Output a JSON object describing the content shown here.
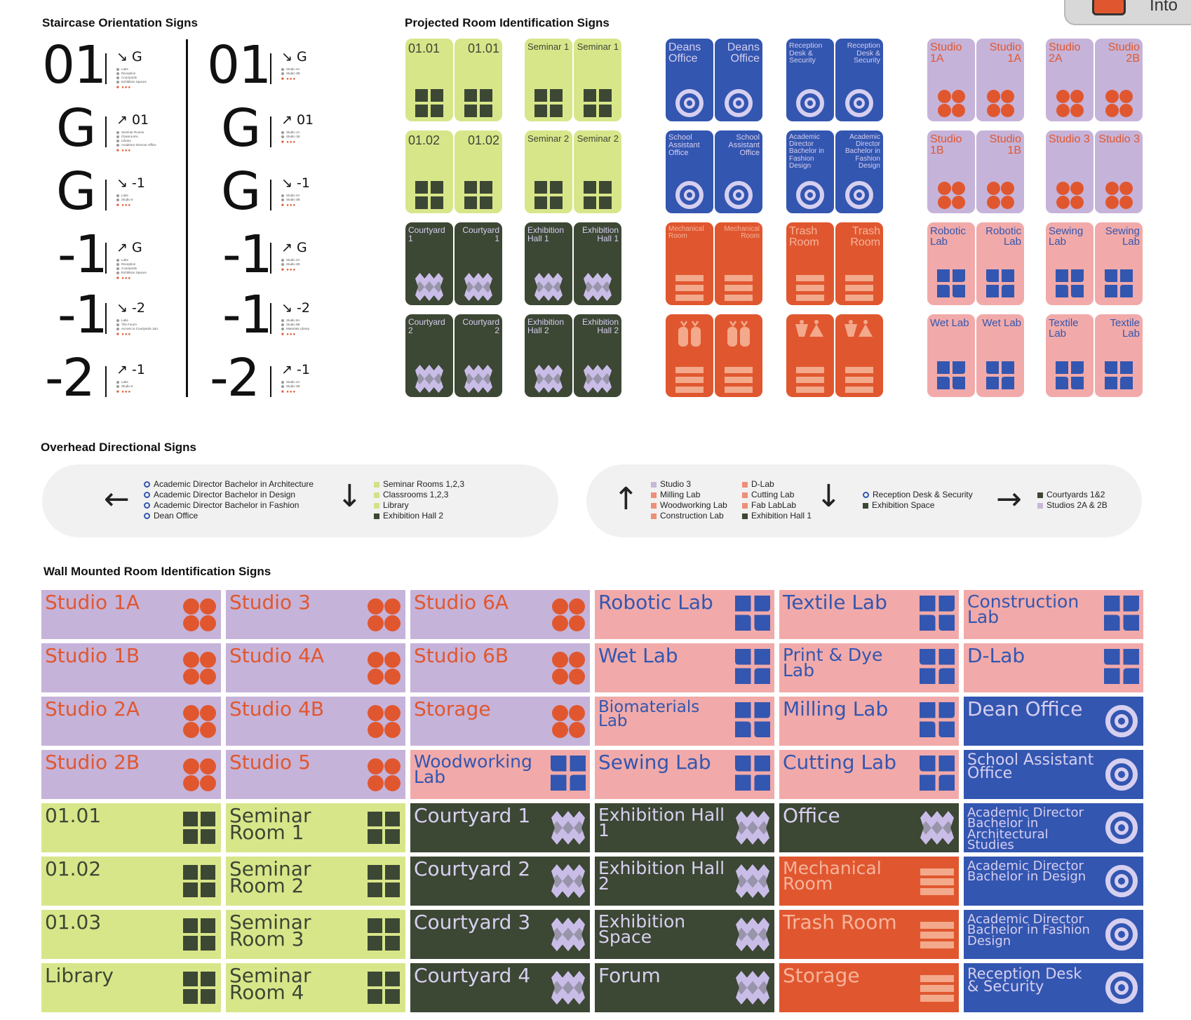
{
  "sections": {
    "staircase": "Staircase Orientation Signs",
    "projected": "Projected Room Identification Signs",
    "overhead": "Overhead Directional Signs",
    "wall": "Wall Mounted Room Identification Signs"
  },
  "top_badge": "Into",
  "staircase": {
    "left": [
      {
        "level": "01",
        "dir": "↘ G",
        "items": [
          "Labs",
          "Reception",
          "Courtyards",
          "Exhibition Spaces"
        ]
      },
      {
        "level": "G",
        "dir": "↗ 01",
        "items": [
          "Seminar Rooms",
          "Classrooms",
          "Library",
          "Academic Director Office"
        ]
      },
      {
        "level": "G",
        "dir": "↘ -1",
        "items": [
          "Labs",
          "Studio 5"
        ]
      },
      {
        "level": "-1",
        "dir": "↗ G",
        "items": [
          "Labs",
          "Reception",
          "Courtyards",
          "Exhibition Spaces"
        ]
      },
      {
        "level": "-1",
        "dir": "↘ -2",
        "items": [
          "Labs",
          "The Forum",
          "Access to Courtyards 1&4"
        ]
      },
      {
        "level": "-2",
        "dir": "↗ -1",
        "items": [
          "Labs",
          "Studio 6"
        ]
      }
    ],
    "right": [
      {
        "level": "01",
        "dir": "↘ G",
        "items": [
          "Studio 3A",
          "Studio 3B"
        ]
      },
      {
        "level": "G",
        "dir": "↗ 01",
        "items": [
          "Studio 1A",
          "Studio 1B"
        ]
      },
      {
        "level": "G",
        "dir": "↘ -1",
        "items": [
          "Studio 4A",
          "Studio 4B"
        ]
      },
      {
        "level": "-1",
        "dir": "↗ G",
        "items": [
          "Studio 2A",
          "Studio 2B"
        ]
      },
      {
        "level": "-1",
        "dir": "↘ -2",
        "items": [
          "Studio 6A",
          "Studio 6B",
          "Materials Library"
        ]
      },
      {
        "level": "-2",
        "dir": "↗ -1",
        "items": [
          "Studio 4A",
          "Studio 4B"
        ]
      }
    ]
  },
  "projected": {
    "lime": [
      [
        "01.01",
        "01.01"
      ],
      [
        "Seminar 1",
        "Seminar 1"
      ],
      [
        "01.02",
        "01.02"
      ],
      [
        "Seminar 2",
        "Seminar 2"
      ]
    ],
    "dark": [
      [
        "Courtyard 1",
        "Courtyard 1"
      ],
      [
        "Exhibition Hall 1",
        "Exhibition Hall 1"
      ],
      [
        "Courtyard 2",
        "Courtyard 2"
      ],
      [
        "Exhibition Hall 2",
        "Exhibition Hall 2"
      ]
    ],
    "blue": [
      [
        "Deans Office",
        "Deans Office"
      ],
      [
        "Reception Desk & Security",
        "Reception Desk & Security"
      ],
      [
        "School Assistant Office",
        "School Assistant Office"
      ],
      [
        "Academic Director Bachelor in Fashion Design",
        "Academic Director Bachelor in Fashion Design"
      ]
    ],
    "orange": [
      [
        "Mechanical Room",
        "Mechanical Room"
      ],
      [
        "Trash Room",
        "Trash Room"
      ]
    ],
    "studio": [
      [
        "Studio 1A",
        "Studio 1A"
      ],
      [
        "Studio 2A",
        "Studio 2B"
      ],
      [
        "Studio 1B",
        "Studio 1B"
      ],
      [
        "Studio 3",
        "Studio 3"
      ]
    ],
    "lab": [
      [
        "Robotic Lab",
        "Robotic Lab"
      ],
      [
        "Sewing Lab",
        "Sewing Lab"
      ],
      [
        "Wet Lab",
        "Wet Lab"
      ],
      [
        "Textile Lab",
        "Textile Lab"
      ]
    ]
  },
  "overhead": {
    "left": {
      "list1": [
        "Academic Director Bachelor in Architecture",
        "Academic Director Bachelor in Design",
        "Academic Director Bachelor in Fashion",
        "Dean Office"
      ],
      "list2": [
        "Seminar Rooms 1,2,3",
        "Classrooms 1,2,3",
        "Library",
        "Exhibition Hall 2"
      ]
    },
    "right": {
      "list1": [
        "Studio 3",
        "Milling Lab",
        "Woodworking Lab",
        "Construction Lab"
      ],
      "list2": [
        "D-Lab",
        "Cutting Lab",
        "Fab LabLab",
        "Exhibition Hall 1"
      ],
      "list3": [
        "Reception Desk & Security",
        "Exhibition Space"
      ],
      "list4": [
        "Courtyards 1&2",
        "Studios  2A & 2B"
      ]
    }
  },
  "wall": {
    "col1": [
      "Studio 1A",
      "Studio 1B",
      "Studio 2A",
      "Studio 2B",
      "01.01",
      "01.02",
      "01.03",
      "Library"
    ],
    "col2": [
      "Studio 3",
      "Studio 4A",
      "Studio 4B",
      "Studio 5",
      "Seminar Room 1",
      "Seminar Room 2",
      "Seminar Room 3",
      "Seminar Room 4"
    ],
    "col3": [
      "Studio 6A",
      "Studio 6B",
      "Storage",
      "Woodworking Lab",
      "Courtyard 1",
      "Courtyard 2",
      "Courtyard 3",
      "Courtyard 4"
    ],
    "col4": [
      "Robotic Lab",
      "Wet Lab",
      "Biomaterials Lab",
      "Sewing Lab",
      "Exhibition Hall 1",
      "Exhibition Hall 2",
      "Exhibition Space",
      "Forum"
    ],
    "col5": [
      "Textile Lab",
      "Print & Dye Lab",
      "Milling Lab",
      "Cutting Lab",
      "Office",
      "Mechanical Room",
      "Trash Room",
      "Storage"
    ],
    "col6": [
      "Construction Lab",
      "D-Lab",
      "Dean Office",
      "School Assistant Office",
      "Academic Director Bachelor in Architectural Studies",
      "Academic Director Bachelor in Design",
      "Academic Director Bachelor in Fashion Design",
      "Reception Desk & Security"
    ]
  },
  "colors": {
    "studio": "#c6b3d9",
    "lab": "#f1aaa9",
    "lime": "#d8e68a",
    "dark": "#3c4734",
    "orange": "#e0572f",
    "blue": "#3356b0"
  }
}
